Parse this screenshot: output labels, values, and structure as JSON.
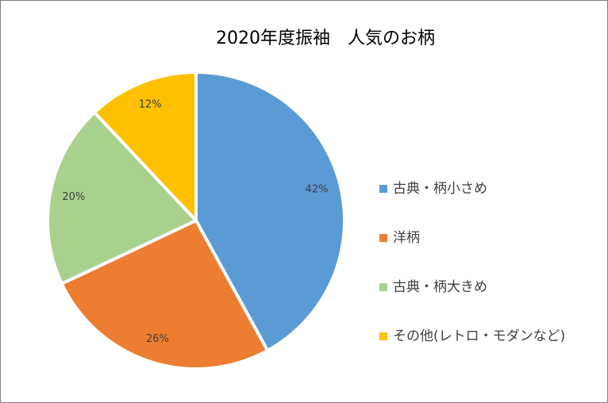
{
  "chart_data": {
    "type": "pie",
    "title": "2020年度振袖　人気のお柄",
    "categories": [
      "古典・柄小さめ",
      "洋柄",
      "古典・柄大きめ",
      "その他(レトロ・モダンなど)"
    ],
    "values": [
      42,
      26,
      20,
      12
    ],
    "value_labels": [
      "42%",
      "26%",
      "20%",
      "12%"
    ],
    "colors": [
      "#5b9bd5",
      "#ed7d31",
      "#a9d18e",
      "#ffc000"
    ],
    "legend": "right"
  }
}
